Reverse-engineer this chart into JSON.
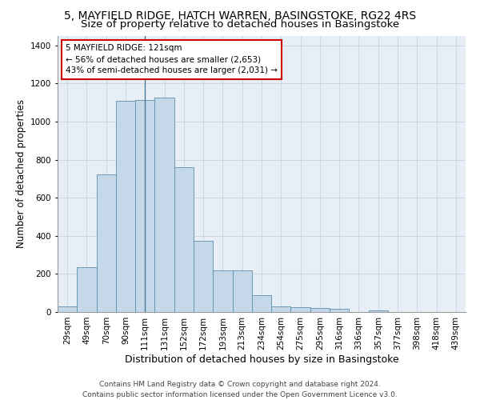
{
  "title_line1": "5, MAYFIELD RIDGE, HATCH WARREN, BASINGSTOKE, RG22 4RS",
  "title_line2": "Size of property relative to detached houses in Basingstoke",
  "xlabel": "Distribution of detached houses by size in Basingstoke",
  "ylabel": "Number of detached properties",
  "categories": [
    "29sqm",
    "49sqm",
    "70sqm",
    "90sqm",
    "111sqm",
    "131sqm",
    "152sqm",
    "172sqm",
    "193sqm",
    "213sqm",
    "234sqm",
    "254sqm",
    "275sqm",
    "295sqm",
    "316sqm",
    "336sqm",
    "357sqm",
    "377sqm",
    "398sqm",
    "418sqm",
    "439sqm"
  ],
  "bar_heights": [
    30,
    235,
    725,
    1110,
    1115,
    1125,
    760,
    375,
    220,
    220,
    90,
    30,
    25,
    20,
    15,
    0,
    10,
    0,
    0,
    0,
    0
  ],
  "bar_color": "#c5d8ea",
  "bar_edge_color": "#5a8fad",
  "annotation_line1": "5 MAYFIELD RIDGE: 121sqm",
  "annotation_line2": "← 56% of detached houses are smaller (2,653)",
  "annotation_line3": "43% of semi-detached houses are larger (2,031) →",
  "annotation_box_facecolor": "#ffffff",
  "annotation_box_edgecolor": "#cc0000",
  "highlight_bar_index": 4,
  "ylim": [
    0,
    1450
  ],
  "yticks": [
    0,
    200,
    400,
    600,
    800,
    1000,
    1200,
    1400
  ],
  "grid_color": "#c8d4e3",
  "background_color": "#e8eef6",
  "footnote_line1": "Contains HM Land Registry data © Crown copyright and database right 2024.",
  "footnote_line2": "Contains public sector information licensed under the Open Government Licence v3.0.",
  "title_fontsize": 10,
  "subtitle_fontsize": 9.5,
  "xlabel_fontsize": 9,
  "ylabel_fontsize": 8.5,
  "tick_fontsize": 7.5,
  "annotation_fontsize": 7.5,
  "footnote_fontsize": 6.5
}
